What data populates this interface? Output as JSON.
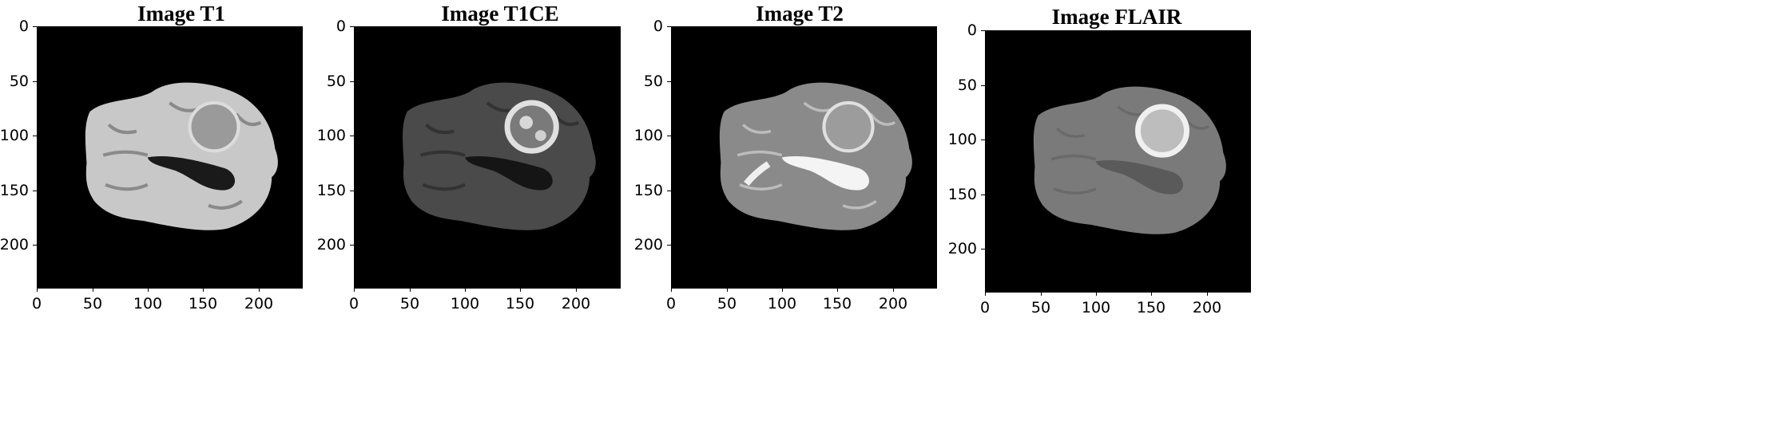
{
  "panels": [
    {
      "title": "Image T1",
      "modality": "T1",
      "y_ticks": [
        "0",
        "50",
        "100",
        "150",
        "200"
      ],
      "x_ticks": [
        "0",
        "50",
        "100",
        "150",
        "200"
      ]
    },
    {
      "title": "Image T1CE",
      "modality": "T1CE",
      "y_ticks": [
        "0",
        "50",
        "100",
        "150",
        "200"
      ],
      "x_ticks": [
        "0",
        "50",
        "100",
        "150",
        "200"
      ]
    },
    {
      "title": "Image T2",
      "modality": "T2",
      "y_ticks": [
        "0",
        "50",
        "100",
        "150",
        "200"
      ],
      "x_ticks": [
        "0",
        "50",
        "100",
        "150",
        "200"
      ]
    },
    {
      "title": "Image FLAIR",
      "modality": "FLAIR",
      "y_ticks": [
        "0",
        "50",
        "100",
        "150",
        "200"
      ],
      "x_ticks": [
        "0",
        "50",
        "100",
        "150",
        "200"
      ]
    }
  ],
  "colors": {
    "background": "#000000",
    "t1_brain": "#c8c8c8",
    "t1_tumor": "#9a9a9a",
    "t1_ventricle": "#1a1a1a",
    "t1ce_brain": "#4a4a4a",
    "t1ce_tumor": "#d8d8d8",
    "t1ce_ventricle": "#151515",
    "t2_brain": "#8a8a8a",
    "t2_tumor": "#b0b0b0",
    "t2_ventricle": "#f4f4f4",
    "flair_brain": "#7a7a7a",
    "flair_tumor": "#e6e6e6",
    "flair_ventricle": "#5a5a5a"
  }
}
